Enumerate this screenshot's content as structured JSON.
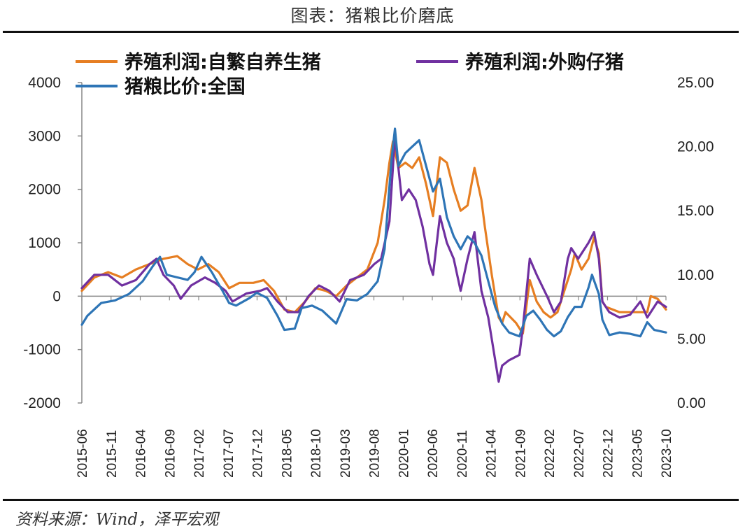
{
  "title": "图表：猪粮比价磨底",
  "source": "资料来源：Wind，泽平宏观",
  "colors": {
    "series1": "#E67E22",
    "series2": "#7030A0",
    "series3": "#2E75B6",
    "axis": "#888888"
  },
  "chart_data": {
    "type": "line",
    "left_axis": {
      "ylim": [
        -2000,
        4000
      ],
      "ticks": [
        "4000",
        "3000",
        "2000",
        "1000",
        "0",
        "-1000",
        "-2000"
      ]
    },
    "right_axis": {
      "ylim": [
        0,
        25
      ],
      "ticks": [
        "25.00",
        "20.00",
        "15.00",
        "10.00",
        "5.00",
        "0.00"
      ]
    },
    "x_tick_labels": [
      "2015-06",
      "2015-11",
      "2016-04",
      "2016-09",
      "2017-02",
      "2017-07",
      "2017-12",
      "2018-05",
      "2018-10",
      "2019-03",
      "2019-08",
      "2020-01",
      "2020-06",
      "2020-11",
      "2021-04",
      "2021-09",
      "2022-02",
      "2022-07",
      "2022-12",
      "2023-05",
      "2023-10"
    ],
    "x_range": [
      2015.42,
      2023.87
    ],
    "legend_placement": "top",
    "grid": false,
    "series": [
      {
        "name": "养殖利润:自繁自养生猪",
        "axis": "left",
        "color": "#E67E22",
        "points": [
          [
            2015.42,
            100
          ],
          [
            2015.6,
            350
          ],
          [
            2015.8,
            450
          ],
          [
            2016.0,
            350
          ],
          [
            2016.2,
            500
          ],
          [
            2016.4,
            600
          ],
          [
            2016.6,
            700
          ],
          [
            2016.8,
            750
          ],
          [
            2016.95,
            600
          ],
          [
            2017.1,
            500
          ],
          [
            2017.25,
            600
          ],
          [
            2017.4,
            450
          ],
          [
            2017.55,
            150
          ],
          [
            2017.7,
            250
          ],
          [
            2017.9,
            250
          ],
          [
            2018.05,
            300
          ],
          [
            2018.2,
            100
          ],
          [
            2018.35,
            -250
          ],
          [
            2018.5,
            -300
          ],
          [
            2018.65,
            -100
          ],
          [
            2018.8,
            150
          ],
          [
            2018.95,
            100
          ],
          [
            2019.1,
            0
          ],
          [
            2019.25,
            200
          ],
          [
            2019.4,
            350
          ],
          [
            2019.55,
            500
          ],
          [
            2019.7,
            1000
          ],
          [
            2019.8,
            1800
          ],
          [
            2019.87,
            2500
          ],
          [
            2019.92,
            2900
          ],
          [
            2020.0,
            2400
          ],
          [
            2020.1,
            2500
          ],
          [
            2020.2,
            2400
          ],
          [
            2020.3,
            2600
          ],
          [
            2020.4,
            2100
          ],
          [
            2020.5,
            1500
          ],
          [
            2020.6,
            2600
          ],
          [
            2020.7,
            2500
          ],
          [
            2020.8,
            2000
          ],
          [
            2020.9,
            1600
          ],
          [
            2021.0,
            1700
          ],
          [
            2021.1,
            2400
          ],
          [
            2021.2,
            1800
          ],
          [
            2021.25,
            1300
          ],
          [
            2021.35,
            400
          ],
          [
            2021.45,
            -400
          ],
          [
            2021.5,
            -500
          ],
          [
            2021.55,
            -300
          ],
          [
            2021.7,
            -500
          ],
          [
            2021.8,
            -700
          ],
          [
            2021.9,
            300
          ],
          [
            2022.0,
            -100
          ],
          [
            2022.1,
            -300
          ],
          [
            2022.2,
            -400
          ],
          [
            2022.3,
            -300
          ],
          [
            2022.4,
            100
          ],
          [
            2022.5,
            500
          ],
          [
            2022.55,
            800
          ],
          [
            2022.65,
            500
          ],
          [
            2022.75,
            700
          ],
          [
            2022.83,
            1100
          ],
          [
            2022.9,
            800
          ],
          [
            2022.95,
            -100
          ],
          [
            2023.0,
            -200
          ],
          [
            2023.2,
            -300
          ],
          [
            2023.4,
            -300
          ],
          [
            2023.6,
            -300
          ],
          [
            2023.65,
            0
          ],
          [
            2023.75,
            -50
          ],
          [
            2023.87,
            -250
          ]
        ]
      },
      {
        "name": "养殖利润:外购仔猪",
        "axis": "left",
        "color": "#7030A0",
        "points": [
          [
            2015.42,
            150
          ],
          [
            2015.6,
            400
          ],
          [
            2015.8,
            400
          ],
          [
            2016.0,
            200
          ],
          [
            2016.2,
            300
          ],
          [
            2016.4,
            600
          ],
          [
            2016.5,
            700
          ],
          [
            2016.6,
            400
          ],
          [
            2016.75,
            200
          ],
          [
            2016.85,
            -50
          ],
          [
            2017.0,
            200
          ],
          [
            2017.2,
            350
          ],
          [
            2017.35,
            250
          ],
          [
            2017.5,
            100
          ],
          [
            2017.6,
            -100
          ],
          [
            2017.8,
            50
          ],
          [
            2018.0,
            100
          ],
          [
            2018.1,
            150
          ],
          [
            2018.25,
            -100
          ],
          [
            2018.4,
            -300
          ],
          [
            2018.55,
            -300
          ],
          [
            2018.7,
            0
          ],
          [
            2018.85,
            200
          ],
          [
            2019.0,
            100
          ],
          [
            2019.15,
            -100
          ],
          [
            2019.3,
            300
          ],
          [
            2019.5,
            400
          ],
          [
            2019.65,
            600
          ],
          [
            2019.75,
            700
          ],
          [
            2019.87,
            1400
          ],
          [
            2019.95,
            3000
          ],
          [
            2020.05,
            1800
          ],
          [
            2020.15,
            2000
          ],
          [
            2020.25,
            1800
          ],
          [
            2020.35,
            1300
          ],
          [
            2020.45,
            600
          ],
          [
            2020.5,
            400
          ],
          [
            2020.6,
            1500
          ],
          [
            2020.7,
            1000
          ],
          [
            2020.8,
            700
          ],
          [
            2020.9,
            100
          ],
          [
            2021.0,
            700
          ],
          [
            2021.1,
            1200
          ],
          [
            2021.2,
            100
          ],
          [
            2021.3,
            -400
          ],
          [
            2021.4,
            -1200
          ],
          [
            2021.45,
            -1600
          ],
          [
            2021.5,
            -1300
          ],
          [
            2021.6,
            -1200
          ],
          [
            2021.75,
            -1100
          ],
          [
            2021.8,
            -600
          ],
          [
            2021.9,
            700
          ],
          [
            2022.0,
            400
          ],
          [
            2022.15,
            0
          ],
          [
            2022.25,
            -300
          ],
          [
            2022.35,
            -100
          ],
          [
            2022.45,
            700
          ],
          [
            2022.5,
            900
          ],
          [
            2022.6,
            700
          ],
          [
            2022.75,
            1000
          ],
          [
            2022.83,
            1200
          ],
          [
            2022.9,
            700
          ],
          [
            2022.95,
            -100
          ],
          [
            2023.05,
            -300
          ],
          [
            2023.2,
            -400
          ],
          [
            2023.35,
            -350
          ],
          [
            2023.5,
            -100
          ],
          [
            2023.6,
            -400
          ],
          [
            2023.75,
            -100
          ],
          [
            2023.87,
            -200
          ]
        ]
      },
      {
        "name": "猪粮比价:全国",
        "axis": "right",
        "color": "#2E75B6",
        "points": [
          [
            2015.42,
            6.1
          ],
          [
            2015.5,
            6.8
          ],
          [
            2015.7,
            7.8
          ],
          [
            2015.9,
            8.0
          ],
          [
            2016.1,
            8.5
          ],
          [
            2016.3,
            9.5
          ],
          [
            2016.45,
            10.7
          ],
          [
            2016.55,
            11.4
          ],
          [
            2016.65,
            10.0
          ],
          [
            2016.8,
            9.8
          ],
          [
            2016.95,
            9.6
          ],
          [
            2017.05,
            10.2
          ],
          [
            2017.15,
            11.4
          ],
          [
            2017.3,
            10.2
          ],
          [
            2017.45,
            8.8
          ],
          [
            2017.55,
            7.8
          ],
          [
            2017.65,
            7.6
          ],
          [
            2017.85,
            8.2
          ],
          [
            2017.95,
            8.6
          ],
          [
            2018.1,
            8.2
          ],
          [
            2018.25,
            6.8
          ],
          [
            2018.35,
            5.7
          ],
          [
            2018.5,
            5.8
          ],
          [
            2018.6,
            7.4
          ],
          [
            2018.75,
            7.6
          ],
          [
            2018.9,
            7.2
          ],
          [
            2019.0,
            6.7
          ],
          [
            2019.1,
            6.2
          ],
          [
            2019.25,
            8.1
          ],
          [
            2019.4,
            8.0
          ],
          [
            2019.55,
            8.5
          ],
          [
            2019.7,
            9.5
          ],
          [
            2019.8,
            12.0
          ],
          [
            2019.9,
            19.0
          ],
          [
            2019.95,
            21.4
          ],
          [
            2020.0,
            18.5
          ],
          [
            2020.1,
            19.5
          ],
          [
            2020.2,
            20.0
          ],
          [
            2020.3,
            20.5
          ],
          [
            2020.4,
            18.5
          ],
          [
            2020.5,
            16.5
          ],
          [
            2020.6,
            17.5
          ],
          [
            2020.7,
            14.5
          ],
          [
            2020.8,
            13.0
          ],
          [
            2020.9,
            12.0
          ],
          [
            2021.0,
            13.0
          ],
          [
            2021.1,
            12.5
          ],
          [
            2021.2,
            11.5
          ],
          [
            2021.3,
            9.5
          ],
          [
            2021.4,
            7.5
          ],
          [
            2021.5,
            6.2
          ],
          [
            2021.6,
            5.5
          ],
          [
            2021.75,
            5.2
          ],
          [
            2021.85,
            6.8
          ],
          [
            2021.95,
            7.2
          ],
          [
            2022.05,
            6.5
          ],
          [
            2022.15,
            5.7
          ],
          [
            2022.25,
            5.2
          ],
          [
            2022.35,
            5.6
          ],
          [
            2022.45,
            6.7
          ],
          [
            2022.55,
            7.5
          ],
          [
            2022.65,
            7.5
          ],
          [
            2022.75,
            9.0
          ],
          [
            2022.8,
            10.0
          ],
          [
            2022.9,
            8.5
          ],
          [
            2022.95,
            6.5
          ],
          [
            2023.05,
            5.3
          ],
          [
            2023.2,
            5.5
          ],
          [
            2023.35,
            5.4
          ],
          [
            2023.5,
            5.2
          ],
          [
            2023.6,
            6.3
          ],
          [
            2023.7,
            5.7
          ],
          [
            2023.87,
            5.5
          ]
        ]
      }
    ]
  }
}
